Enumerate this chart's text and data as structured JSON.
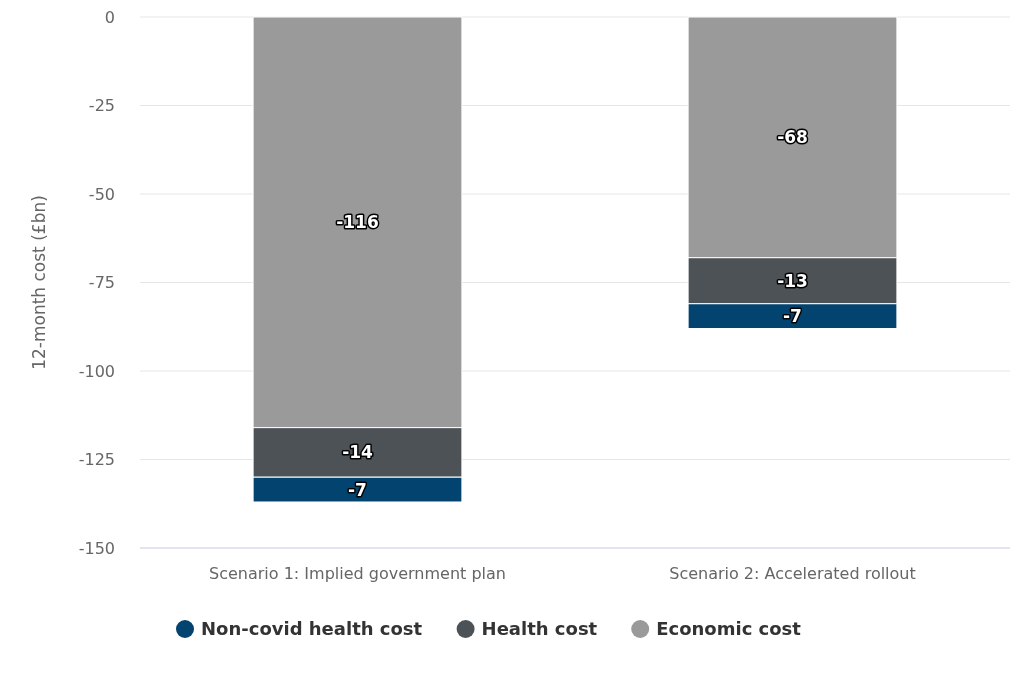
{
  "chart_data": {
    "type": "bar",
    "ylabel": "12-month cost (£bn)",
    "categories": [
      "Scenario 1: Implied government plan",
      "Scenario 2: Accelerated rollout"
    ],
    "stacked": true,
    "series": [
      {
        "name": "Economic cost",
        "color": "#9a9a9a",
        "values": [
          -116,
          -68
        ]
      },
      {
        "name": "Health cost",
        "color": "#4d5256",
        "values": [
          -14,
          -13
        ]
      },
      {
        "name": "Non-covid health cost",
        "color": "#034370",
        "values": [
          -7,
          -7
        ]
      }
    ],
    "ylim": [
      -150,
      0
    ],
    "yticks": [
      0,
      -25,
      -50,
      -75,
      -100,
      -125,
      -150
    ],
    "grid": "y",
    "legend": "bottom",
    "data_labels": true
  }
}
